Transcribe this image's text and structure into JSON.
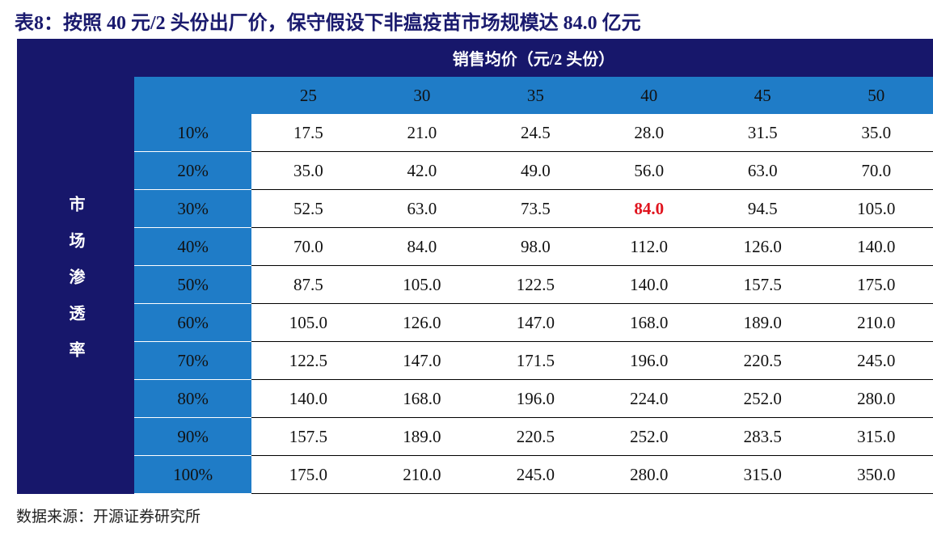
{
  "title": "表8：按照 40 元/2 头份出厂价，保守假设下非瘟疫苗市场规模达 84.0 亿元",
  "table": {
    "column_group_label": "销售均价（元/2 头份）",
    "row_group_label": "市场渗透率",
    "column_headers": [
      "25",
      "30",
      "35",
      "40",
      "45",
      "50"
    ],
    "rows": [
      {
        "label": "10%",
        "cells": [
          "17.5",
          "21.0",
          "24.5",
          "28.0",
          "31.5",
          "35.0"
        ]
      },
      {
        "label": "20%",
        "cells": [
          "35.0",
          "42.0",
          "49.0",
          "56.0",
          "63.0",
          "70.0"
        ]
      },
      {
        "label": "30%",
        "cells": [
          "52.5",
          "63.0",
          "73.5",
          "84.0",
          "94.5",
          "105.0"
        ]
      },
      {
        "label": "40%",
        "cells": [
          "70.0",
          "84.0",
          "98.0",
          "112.0",
          "126.0",
          "140.0"
        ]
      },
      {
        "label": "50%",
        "cells": [
          "87.5",
          "105.0",
          "122.5",
          "140.0",
          "157.5",
          "175.0"
        ]
      },
      {
        "label": "60%",
        "cells": [
          "105.0",
          "126.0",
          "147.0",
          "168.0",
          "189.0",
          "210.0"
        ]
      },
      {
        "label": "70%",
        "cells": [
          "122.5",
          "147.0",
          "171.5",
          "196.0",
          "220.5",
          "245.0"
        ]
      },
      {
        "label": "80%",
        "cells": [
          "140.0",
          "168.0",
          "196.0",
          "224.0",
          "252.0",
          "280.0"
        ]
      },
      {
        "label": "90%",
        "cells": [
          "157.5",
          "189.0",
          "220.5",
          "252.0",
          "283.5",
          "315.0"
        ]
      },
      {
        "label": "100%",
        "cells": [
          "175.0",
          "210.0",
          "245.0",
          "280.0",
          "315.0",
          "350.0"
        ]
      }
    ]
  },
  "source": "数据来源：开源证券研究所"
}
